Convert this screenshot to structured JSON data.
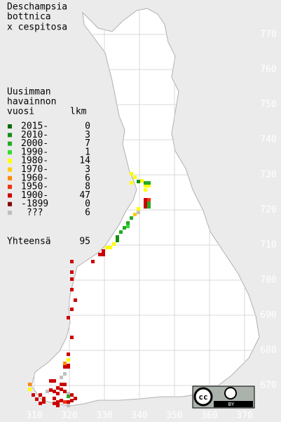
{
  "title": [
    "Deschampsia",
    "bottnica",
    "x cespitosa"
  ],
  "legend": {
    "header": [
      "Uusimman",
      "havainnon",
      "vuosi"
    ],
    "count_header": "lkm",
    "rows": [
      {
        "label": "2015-",
        "count": 0,
        "color": "#0a6a0a"
      },
      {
        "label": "2010-",
        "count": 3,
        "color": "#168c16"
      },
      {
        "label": "2000-",
        "count": 7,
        "color": "#22aa22"
      },
      {
        "label": "1990-",
        "count": 1,
        "color": "#33dd33"
      },
      {
        "label": "1980-",
        "count": 14,
        "color": "#ffff00"
      },
      {
        "label": "1970-",
        "count": 3,
        "color": "#ffcc00"
      },
      {
        "label": "1960-",
        "count": 6,
        "color": "#ff8800"
      },
      {
        "label": "1950-",
        "count": 8,
        "color": "#ee3311"
      },
      {
        "label": "1900-",
        "count": 47,
        "color": "#cc0000"
      },
      {
        "label": "-1899",
        "count": 0,
        "color": "#880000"
      },
      {
        "label": "???",
        "count": 6,
        "color": "#c0c0c0"
      }
    ],
    "total_label": "Yhteensä",
    "total": 95
  },
  "x_labels": [
    310,
    320,
    330,
    340,
    350,
    360,
    370
  ],
  "y_labels": [
    670,
    680,
    690,
    700,
    710,
    720,
    730,
    740,
    750,
    760,
    770
  ],
  "badge": {
    "label": "BY"
  }
}
